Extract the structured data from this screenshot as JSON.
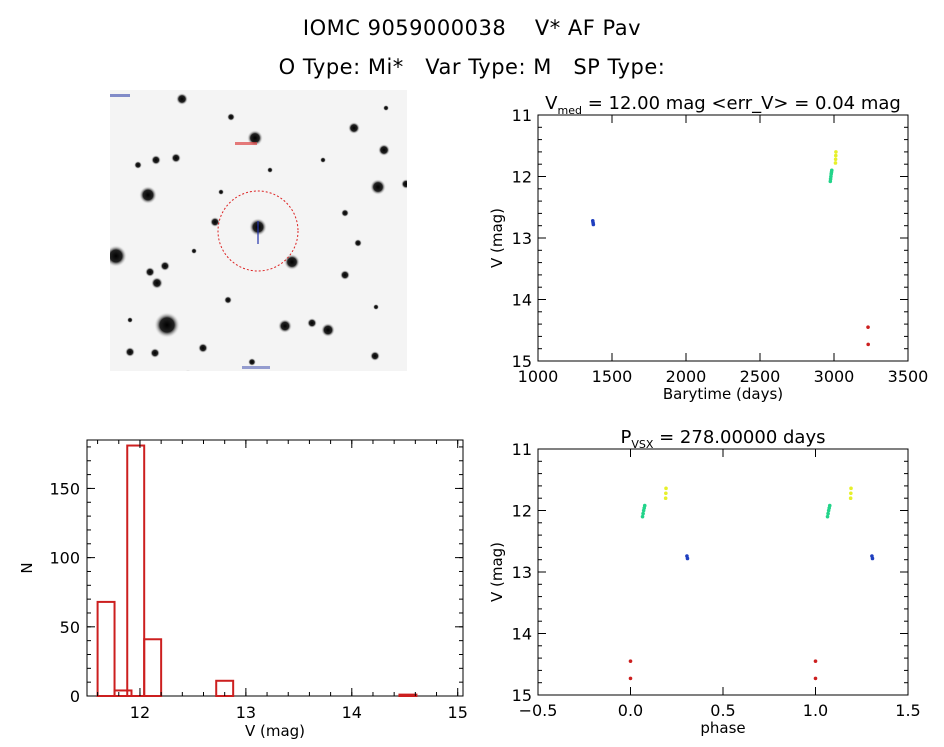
{
  "header": {
    "title_line1": "IOMC 9059000038    V* AF Pav",
    "title_line2": "O Type: Mi*   Var Type: M   SP Type:"
  },
  "colors": {
    "histogram": "#cc1f1f",
    "aperture_circle": "#dd2222",
    "series_blue": "#1f3fbf",
    "series_green": "#22d48a",
    "series_yellow": "#e6f02a",
    "series_red": "#cc1f1f"
  },
  "chart_data": [
    {
      "id": "lightcurve",
      "type": "scatter",
      "title_main": "V",
      "title_sub": "med",
      "title_rest": " = 12.00 mag <err_V> = 0.04 mag",
      "xlabel": "Barytime (days)",
      "ylabel": "V (mag)",
      "xlim": [
        1000,
        3500
      ],
      "ylim": [
        11,
        15
      ],
      "y_inverted": true,
      "xticks": [
        1000,
        1500,
        2000,
        2500,
        3000,
        3500
      ],
      "yticks": [
        11,
        12,
        13,
        14,
        15
      ],
      "series": [
        {
          "name": "blue",
          "color": "#1f3fbf",
          "x": [
            1370,
            1372,
            1374
          ],
          "y": [
            12.72,
            12.75,
            12.78
          ]
        },
        {
          "name": "green",
          "color": "#22d48a",
          "x": [
            2975,
            2977,
            2979,
            2981,
            2983,
            2985
          ],
          "y": [
            12.08,
            12.04,
            12.0,
            11.96,
            11.93,
            11.9
          ]
        },
        {
          "name": "yellow",
          "color": "#e6f02a",
          "x": [
            3010,
            3011,
            3012,
            3013
          ],
          "y": [
            11.78,
            11.72,
            11.66,
            11.6
          ]
        },
        {
          "name": "red",
          "color": "#cc1f1f",
          "x": [
            3230,
            3231
          ],
          "y": [
            14.45,
            14.73
          ]
        }
      ]
    },
    {
      "id": "phased",
      "type": "scatter",
      "title_main": "P",
      "title_sub": "VSX",
      "title_rest": " = 278.00000 days",
      "xlabel": "phase",
      "ylabel": "V (mag)",
      "xlim": [
        -0.5,
        1.5
      ],
      "ylim": [
        11,
        15
      ],
      "y_inverted": true,
      "xticks": [
        -0.5,
        0.0,
        0.5,
        1.0,
        1.5
      ],
      "xtick_labels": [
        "−0.5",
        "0.0",
        "0.5",
        "1.0",
        "1.5"
      ],
      "yticks": [
        11,
        12,
        13,
        14,
        15
      ],
      "series": [
        {
          "name": "blue",
          "color": "#1f3fbf",
          "x": [
            0.305,
            0.308,
            1.305,
            1.308
          ],
          "y": [
            12.74,
            12.78,
            12.74,
            12.78
          ]
        },
        {
          "name": "green",
          "color": "#22d48a",
          "x": [
            0.065,
            0.068,
            0.071,
            0.074,
            0.077,
            1.065,
            1.068,
            1.071,
            1.074,
            1.077
          ],
          "y": [
            12.1,
            12.05,
            12.0,
            11.96,
            11.92,
            12.1,
            12.05,
            12.0,
            11.96,
            11.92
          ]
        },
        {
          "name": "yellow",
          "color": "#e6f02a",
          "x": [
            0.19,
            0.191,
            0.192,
            1.19,
            1.191,
            1.192
          ],
          "y": [
            11.8,
            11.72,
            11.64,
            11.8,
            11.72,
            11.64
          ]
        },
        {
          "name": "red",
          "color": "#cc1f1f",
          "x": [
            0.0,
            0.0,
            1.0,
            1.0
          ],
          "y": [
            14.45,
            14.73,
            14.45,
            14.73
          ]
        }
      ]
    },
    {
      "id": "histogram",
      "type": "bar",
      "xlabel": "V (mag)",
      "ylabel": "N",
      "xlim": [
        11.5,
        15.05
      ],
      "ylim": [
        0,
        185
      ],
      "xticks": [
        12,
        13,
        14,
        15
      ],
      "yticks": [
        0,
        50,
        100,
        150
      ],
      "bin_width": 0.16,
      "bins": [
        {
          "start": 11.6,
          "value": 68
        },
        {
          "start": 11.76,
          "value": 4
        },
        {
          "start": 11.88,
          "value": 181
        },
        {
          "start": 12.04,
          "value": 41
        },
        {
          "start": 12.72,
          "value": 11
        },
        {
          "start": 14.45,
          "value": 1
        }
      ]
    }
  ]
}
